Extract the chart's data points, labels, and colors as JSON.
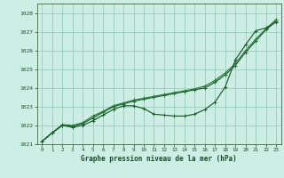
{
  "title": "Graphe pression niveau de la mer (hPa)",
  "background_color": "#cceee4",
  "grid_color": "#99ccbb",
  "line_color1": "#1a5c2a",
  "line_color2": "#2a7a3a",
  "xlim": [
    -0.5,
    23.5
  ],
  "ylim": [
    1021.0,
    1028.5
  ],
  "yticks": [
    1021,
    1022,
    1023,
    1024,
    1025,
    1026,
    1027,
    1028
  ],
  "xticks": [
    0,
    1,
    2,
    3,
    4,
    5,
    6,
    7,
    8,
    9,
    10,
    11,
    12,
    13,
    14,
    15,
    16,
    17,
    18,
    19,
    20,
    21,
    22,
    23
  ],
  "series_linear1_x": [
    0,
    1,
    2,
    3,
    4,
    5,
    6,
    7,
    8,
    9,
    10,
    11,
    12,
    13,
    14,
    15,
    16,
    17,
    18,
    19,
    20,
    21,
    22,
    23
  ],
  "series_linear1_y": [
    1021.15,
    1021.6,
    1022.0,
    1021.95,
    1022.1,
    1022.4,
    1022.7,
    1023.0,
    1023.15,
    1023.3,
    1023.4,
    1023.5,
    1023.6,
    1023.7,
    1023.8,
    1023.9,
    1024.0,
    1024.3,
    1024.7,
    1025.2,
    1025.9,
    1026.5,
    1027.1,
    1027.55
  ],
  "series_linear2_x": [
    0,
    1,
    2,
    3,
    4,
    5,
    6,
    7,
    8,
    9,
    10,
    11,
    12,
    13,
    14,
    15,
    16,
    17,
    18,
    19,
    20,
    21,
    22,
    23
  ],
  "series_linear2_y": [
    1021.15,
    1021.6,
    1022.05,
    1022.0,
    1022.15,
    1022.5,
    1022.75,
    1023.05,
    1023.2,
    1023.35,
    1023.45,
    1023.55,
    1023.65,
    1023.75,
    1023.85,
    1023.95,
    1024.1,
    1024.4,
    1024.8,
    1025.3,
    1026.0,
    1026.6,
    1027.15,
    1027.65
  ],
  "series_dip_x": [
    0,
    1,
    2,
    3,
    4,
    5,
    6,
    7,
    8,
    9,
    10,
    11,
    12,
    13,
    14,
    15,
    16,
    17,
    18,
    19,
    20,
    21,
    22,
    23
  ],
  "series_dip_y": [
    1021.15,
    1021.62,
    1022.0,
    1021.9,
    1022.0,
    1022.25,
    1022.55,
    1022.85,
    1023.05,
    1023.05,
    1022.9,
    1022.6,
    1022.55,
    1022.5,
    1022.5,
    1022.6,
    1022.85,
    1023.25,
    1024.05,
    1025.5,
    1026.3,
    1027.05,
    1027.2,
    1027.5
  ]
}
